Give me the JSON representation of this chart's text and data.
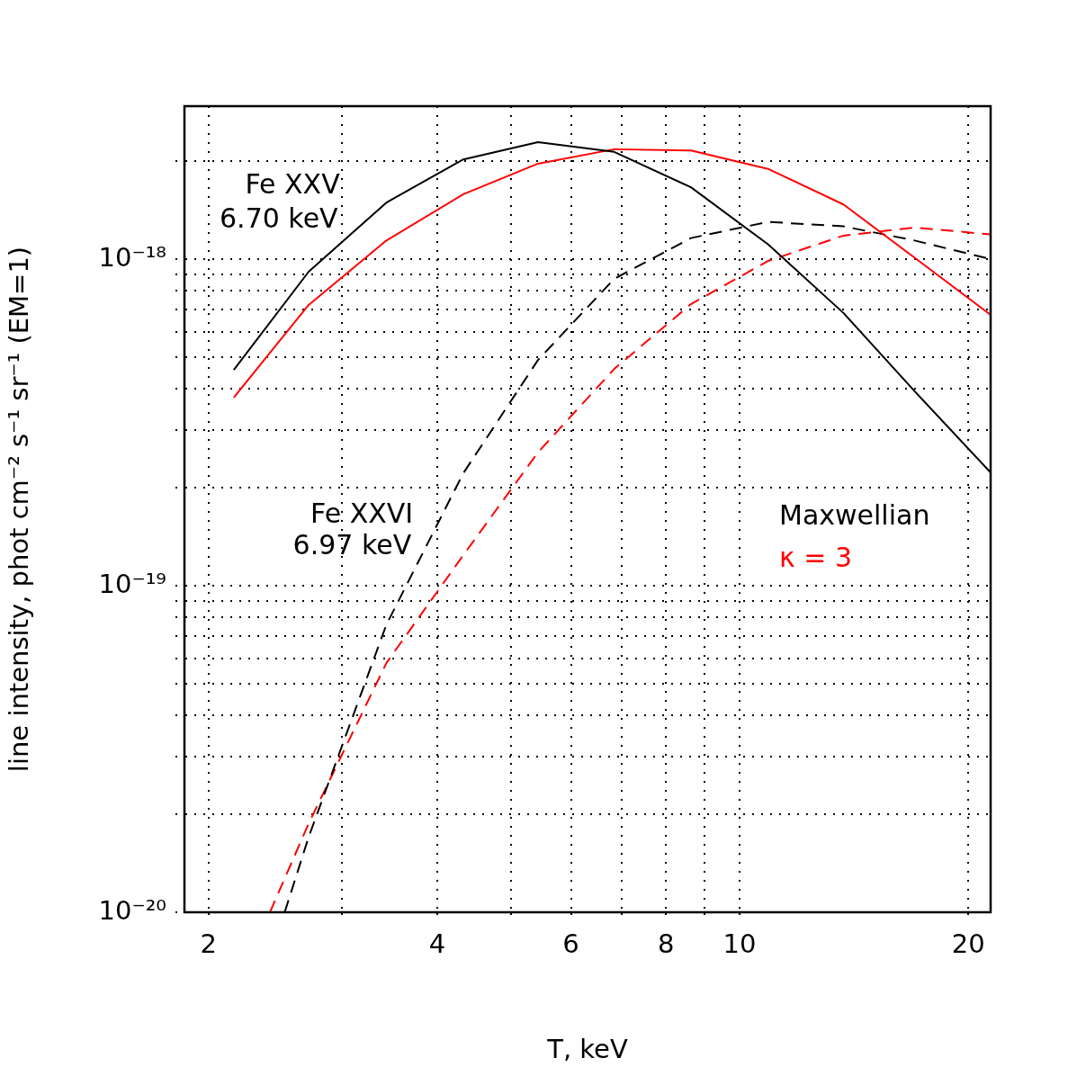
{
  "chart_data": {
    "type": "line",
    "xlabel": "T, keV",
    "ylabel": "line intensity, phot cm⁻² s⁻¹ sr⁻¹ (EM=1)",
    "log": "xy",
    "grid": true,
    "legend": "right",
    "marker": "none",
    "xlim": [
      1.86,
      21.4
    ],
    "ylim": [
      1e-20,
      2.94e-18
    ],
    "xticks": [
      2,
      {
        "value": 3,
        "label": null
      },
      4,
      {
        "value": 5,
        "label": null
      },
      6,
      {
        "value": 7,
        "label": null
      },
      8,
      {
        "value": 9,
        "label": null
      },
      10,
      20
    ],
    "yticks": [
      {
        "value": 1e-20,
        "label": "10⁻²⁰"
      },
      {
        "value": 2e-20,
        "label": null
      },
      {
        "value": 3e-20,
        "label": null
      },
      {
        "value": 4e-20,
        "label": null
      },
      {
        "value": 5e-20,
        "label": null
      },
      {
        "value": 6e-20,
        "label": null
      },
      {
        "value": 7e-20,
        "label": null
      },
      {
        "value": 8e-20,
        "label": null
      },
      {
        "value": 9e-20,
        "label": null
      },
      {
        "value": 1e-19,
        "label": "10⁻¹⁹"
      },
      {
        "value": 2e-19,
        "label": null
      },
      {
        "value": 3e-19,
        "label": null
      },
      {
        "value": 4e-19,
        "label": null
      },
      {
        "value": 5e-19,
        "label": null
      },
      {
        "value": 6e-19,
        "label": null
      },
      {
        "value": 7e-19,
        "label": null
      },
      {
        "value": 8e-19,
        "label": null
      },
      {
        "value": 9e-19,
        "label": null
      },
      {
        "value": 1e-18,
        "label": "10⁻¹⁸"
      },
      {
        "value": 2e-18,
        "label": null
      }
    ],
    "x": [
      2.16,
      2.71,
      3.43,
      4.33,
      5.43,
      6.84,
      8.63,
      10.9,
      13.7,
      17.0,
      21.4
    ],
    "series": [
      {
        "name": "Maxwellian",
        "color": "#000000",
        "line_style": "solid",
        "values": [
          4.58e-19,
          9.15e-19,
          1.49e-18,
          2.02e-18,
          2.28e-18,
          2.13e-18,
          1.66e-18,
          1.11e-18,
          6.84e-19,
          3.94e-19,
          2.22e-19
        ]
      },
      {
        "name": "κ = 3",
        "color": "#ff0000",
        "line_style": "solid",
        "values": [
          3.77e-19,
          7.24e-19,
          1.14e-18,
          1.58e-18,
          1.96e-18,
          2.17e-18,
          2.15e-18,
          1.89e-18,
          1.47e-18,
          1.01e-18,
          6.75e-19
        ]
      },
      {
        "color": "#000000",
        "line_style": "dashed",
        "x": [
          2.52,
          2.71,
          3.43,
          4.33,
          5.43,
          6.84,
          8.63,
          10.9,
          13.7,
          17.0,
          21.4
        ],
        "values": [
          1e-20,
          1.7e-20,
          7.6e-20,
          2.21e-19,
          4.91e-19,
          8.7e-19,
          1.16e-18,
          1.3e-18,
          1.26e-18,
          1.14e-18,
          1e-18
        ]
      },
      {
        "color": "#ff0000",
        "line_style": "dashed",
        "x": [
          2.41,
          2.71,
          3.43,
          4.33,
          5.43,
          6.84,
          8.63,
          10.9,
          13.7,
          17.0,
          21.4
        ],
        "values": [
          1e-20,
          1.87e-20,
          5.8e-20,
          1.24e-19,
          2.56e-19,
          4.61e-19,
          7.28e-19,
          9.87e-19,
          1.18e-18,
          1.25e-18,
          1.19e-18
        ]
      }
    ],
    "annotations": [
      "Fe XXV",
      "6.70 keV",
      "Fe XXVI",
      "6.97 keV"
    ]
  }
}
